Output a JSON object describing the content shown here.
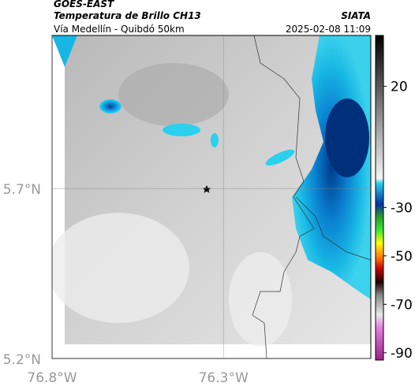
{
  "header": {
    "source": "GOES-EAST",
    "title": "Temperatura de Brillo CH13",
    "org": "SIATA",
    "region": "Vía Medellín - Quibdó 50km",
    "datetime": "2025-02-08 11:09"
  },
  "map": {
    "xlim": [
      -76.8,
      -75.87
    ],
    "ylim": [
      5.2,
      6.15
    ],
    "xticks": [
      {
        "value": -76.8,
        "label": "76.8°W"
      },
      {
        "value": -76.3,
        "label": "76.3°W"
      }
    ],
    "yticks": [
      {
        "value": 5.7,
        "label": "5.7°N"
      },
      {
        "value": 5.2,
        "label": "5.2°N"
      }
    ]
  },
  "colorbar": {
    "lim": [
      -93,
      41
    ],
    "ticks": [
      20,
      -30,
      -50,
      -70,
      -90
    ]
  }
}
